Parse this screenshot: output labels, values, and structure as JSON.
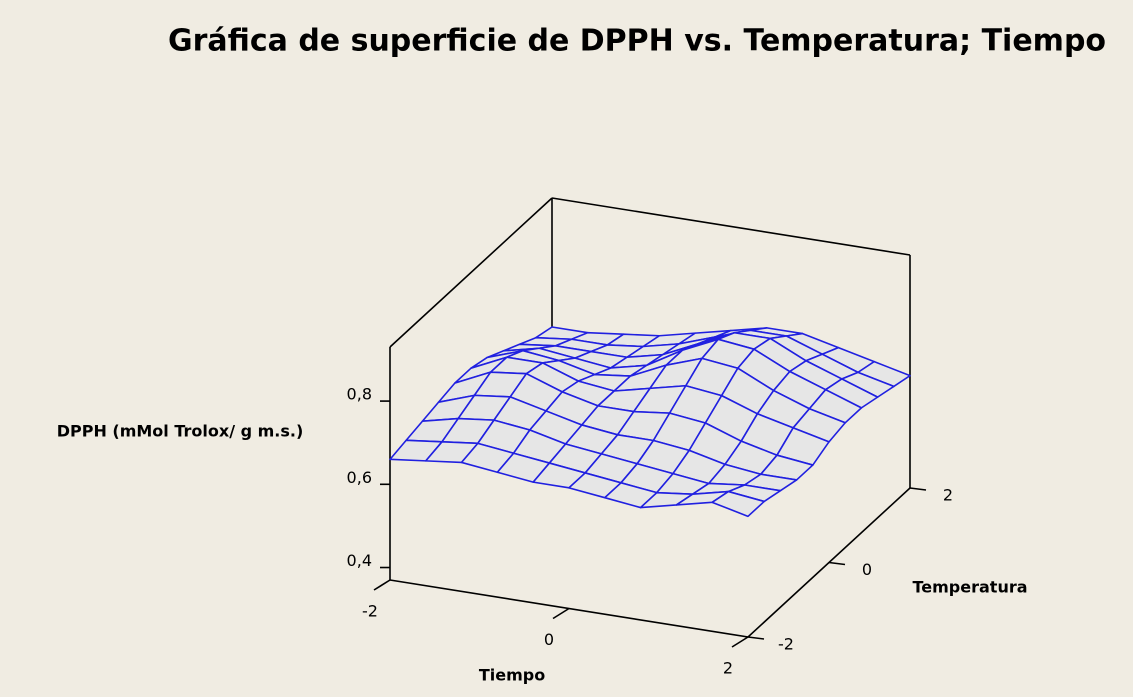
{
  "chart_data": {
    "type": "surface",
    "title": "Gráfica de superficie de DPPH vs. Temperatura; Tiempo",
    "x_label": "Tiempo",
    "y_label": "Temperatura",
    "z_label": "DPPH (mMol Trolox/ g m.s.)",
    "xlim": [
      -2,
      2
    ],
    "ylim": [
      -2,
      2
    ],
    "zlim": [
      0.37,
      0.93
    ],
    "xticks": [
      -2,
      0,
      2
    ],
    "yticks": [
      -2,
      0,
      2
    ],
    "zticks": [
      {
        "value": 0.4,
        "label": "0,4"
      },
      {
        "value": 0.6,
        "label": "0,6"
      },
      {
        "value": 0.8,
        "label": "0,8"
      }
    ],
    "color": "#2020e0",
    "x": [
      -2,
      -1.6,
      -1.2,
      -0.8,
      -0.4,
      0,
      0.4,
      0.8,
      1.2,
      1.6,
      2
    ],
    "y": [
      -2,
      -1.6,
      -1.2,
      -0.8,
      -0.4,
      0,
      0.4,
      0.8,
      1.2,
      1.6,
      2
    ],
    "z": [
      [
        0.66,
        0.67,
        0.68,
        0.67,
        0.66,
        0.66,
        0.65,
        0.64,
        0.66,
        0.68,
        0.66
      ],
      [
        0.67,
        0.68,
        0.69,
        0.68,
        0.67,
        0.66,
        0.65,
        0.64,
        0.65,
        0.67,
        0.66
      ],
      [
        0.68,
        0.7,
        0.71,
        0.7,
        0.68,
        0.67,
        0.66,
        0.65,
        0.64,
        0.65,
        0.65
      ],
      [
        0.69,
        0.72,
        0.73,
        0.71,
        0.69,
        0.68,
        0.68,
        0.67,
        0.65,
        0.64,
        0.64
      ],
      [
        0.7,
        0.74,
        0.75,
        0.72,
        0.7,
        0.7,
        0.71,
        0.7,
        0.67,
        0.65,
        0.64
      ],
      [
        0.7,
        0.74,
        0.74,
        0.71,
        0.7,
        0.72,
        0.74,
        0.73,
        0.7,
        0.68,
        0.66
      ],
      [
        0.69,
        0.72,
        0.71,
        0.69,
        0.7,
        0.74,
        0.77,
        0.76,
        0.72,
        0.69,
        0.67
      ],
      [
        0.67,
        0.69,
        0.68,
        0.67,
        0.69,
        0.74,
        0.78,
        0.77,
        0.73,
        0.7,
        0.67
      ],
      [
        0.65,
        0.66,
        0.66,
        0.66,
        0.68,
        0.72,
        0.76,
        0.76,
        0.72,
        0.69,
        0.66
      ],
      [
        0.63,
        0.64,
        0.64,
        0.65,
        0.67,
        0.7,
        0.73,
        0.73,
        0.7,
        0.67,
        0.65
      ],
      [
        0.62,
        0.62,
        0.63,
        0.64,
        0.66,
        0.68,
        0.7,
        0.7,
        0.68,
        0.66,
        0.64
      ]
    ]
  }
}
